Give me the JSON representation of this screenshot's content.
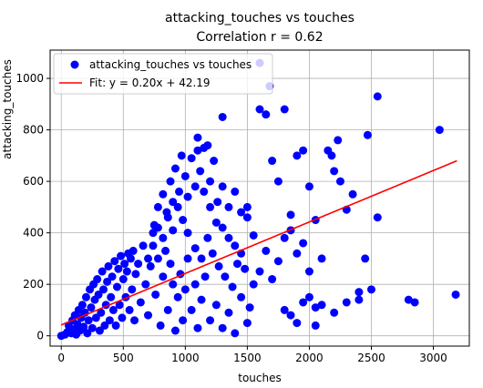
{
  "chart_data": {
    "type": "scatter",
    "title": "attacking_touches vs touches",
    "subtitle": "Correlation r = 0.62",
    "xlabel": "touches",
    "ylabel": "attacking_touches",
    "xlim": [
      -90,
      3290
    ],
    "ylim": [
      -40,
      1110
    ],
    "xticks": [
      0,
      500,
      1000,
      1500,
      2000,
      2500,
      3000
    ],
    "yticks": [
      0,
      200,
      400,
      600,
      800,
      1000
    ],
    "grid": true,
    "legend": "top-left",
    "series": [
      {
        "name": "attacking_touches vs touches",
        "color": "#0000ff",
        "points": [
          [
            0,
            0
          ],
          [
            30,
            5
          ],
          [
            50,
            15
          ],
          [
            60,
            40
          ],
          [
            80,
            10
          ],
          [
            90,
            60
          ],
          [
            100,
            25
          ],
          [
            110,
            80
          ],
          [
            120,
            5
          ],
          [
            130,
            45
          ],
          [
            140,
            100
          ],
          [
            150,
            20
          ],
          [
            160,
            70
          ],
          [
            170,
            120
          ],
          [
            180,
            35
          ],
          [
            190,
            90
          ],
          [
            200,
            150
          ],
          [
            210,
            10
          ],
          [
            220,
            60
          ],
          [
            230,
            180
          ],
          [
            240,
            110
          ],
          [
            250,
            30
          ],
          [
            260,
            200
          ],
          [
            270,
            140
          ],
          [
            280,
            70
          ],
          [
            290,
            220
          ],
          [
            300,
            160
          ],
          [
            310,
            20
          ],
          [
            320,
            90
          ],
          [
            330,
            250
          ],
          [
            340,
            180
          ],
          [
            350,
            40
          ],
          [
            360,
            120
          ],
          [
            370,
            210
          ],
          [
            380,
            270
          ],
          [
            390,
            60
          ],
          [
            400,
            150
          ],
          [
            410,
            230
          ],
          [
            420,
            100
          ],
          [
            430,
            290
          ],
          [
            440,
            40
          ],
          [
            450,
            190
          ],
          [
            460,
            260
          ],
          [
            470,
            120
          ],
          [
            480,
            310
          ],
          [
            490,
            70
          ],
          [
            500,
            220
          ],
          [
            510,
            280
          ],
          [
            520,
            150
          ],
          [
            530,
            250
          ],
          [
            540,
            320
          ],
          [
            550,
            100
          ],
          [
            560,
            300
          ],
          [
            570,
            180
          ],
          [
            580,
            330
          ],
          [
            590,
            60
          ],
          [
            600,
            240
          ],
          [
            620,
            280
          ],
          [
            640,
            130
          ],
          [
            660,
            350
          ],
          [
            680,
            200
          ],
          [
            700,
            80
          ],
          [
            720,
            270
          ],
          [
            740,
            400
          ],
          [
            760,
            160
          ],
          [
            780,
            300
          ],
          [
            800,
            40
          ],
          [
            820,
            230
          ],
          [
            840,
            330
          ],
          [
            860,
            100
          ],
          [
            880,
            280
          ],
          [
            900,
            200
          ],
          [
            920,
            20
          ],
          [
            940,
            150
          ],
          [
            960,
            240
          ],
          [
            980,
            60
          ],
          [
            1000,
            180
          ],
          [
            1020,
            300
          ],
          [
            1050,
            100
          ],
          [
            1080,
            200
          ],
          [
            1100,
            30
          ],
          [
            1130,
            140
          ],
          [
            1160,
            230
          ],
          [
            1200,
            60
          ],
          [
            1250,
            120
          ],
          [
            1300,
            30
          ],
          [
            1350,
            90
          ],
          [
            1400,
            10
          ],
          [
            1450,
            150
          ],
          [
            1500,
            50
          ],
          [
            750,
            430
          ],
          [
            780,
            500
          ],
          [
            820,
            550
          ],
          [
            850,
            480
          ],
          [
            880,
            600
          ],
          [
            900,
            520
          ],
          [
            920,
            650
          ],
          [
            950,
            560
          ],
          [
            970,
            700
          ],
          [
            1000,
            620
          ],
          [
            1020,
            540
          ],
          [
            1050,
            690
          ],
          [
            1080,
            580
          ],
          [
            1100,
            720
          ],
          [
            1120,
            640
          ],
          [
            1150,
            560
          ],
          [
            1180,
            740
          ],
          [
            1200,
            600
          ],
          [
            1230,
            680
          ],
          [
            1260,
            520
          ],
          [
            1300,
            580
          ],
          [
            1350,
            500
          ],
          [
            1400,
            560
          ],
          [
            1450,
            480
          ],
          [
            1500,
            500
          ],
          [
            1100,
            770
          ],
          [
            1150,
            730
          ],
          [
            1300,
            850
          ],
          [
            1200,
            500
          ],
          [
            1250,
            440
          ],
          [
            1300,
            420
          ],
          [
            1350,
            380
          ],
          [
            1400,
            350
          ],
          [
            1450,
            320
          ],
          [
            1500,
            460
          ],
          [
            1550,
            390
          ],
          [
            1600,
            880
          ],
          [
            1650,
            860
          ],
          [
            1680,
            970
          ],
          [
            1700,
            680
          ],
          [
            1600,
            1060
          ],
          [
            1750,
            600
          ],
          [
            1800,
            880
          ],
          [
            1850,
            470
          ],
          [
            1900,
            700
          ],
          [
            1950,
            720
          ],
          [
            2000,
            580
          ],
          [
            2050,
            450
          ],
          [
            2100,
            300
          ],
          [
            2150,
            720
          ],
          [
            2180,
            700
          ],
          [
            2200,
            640
          ],
          [
            2230,
            760
          ],
          [
            2250,
            600
          ],
          [
            2300,
            490
          ],
          [
            2350,
            550
          ],
          [
            2400,
            140
          ],
          [
            2450,
            300
          ],
          [
            2470,
            780
          ],
          [
            2500,
            180
          ],
          [
            2550,
            460
          ],
          [
            2550,
            930
          ],
          [
            2800,
            140
          ],
          [
            2850,
            130
          ],
          [
            3050,
            800
          ],
          [
            3180,
            160
          ],
          [
            1800,
            100
          ],
          [
            1850,
            80
          ],
          [
            1900,
            50
          ],
          [
            1950,
            130
          ],
          [
            2000,
            150
          ],
          [
            2050,
            40
          ],
          [
            2100,
            120
          ],
          [
            2200,
            90
          ],
          [
            2300,
            130
          ],
          [
            2400,
            170
          ],
          [
            1600,
            250
          ],
          [
            1650,
            330
          ],
          [
            1700,
            220
          ],
          [
            1750,
            290
          ],
          [
            1800,
            380
          ],
          [
            1850,
            410
          ],
          [
            1900,
            320
          ],
          [
            1950,
            360
          ],
          [
            2000,
            250
          ],
          [
            2050,
            110
          ],
          [
            1550,
            200
          ],
          [
            1520,
            110
          ],
          [
            1480,
            260
          ],
          [
            1420,
            280
          ],
          [
            1380,
            190
          ],
          [
            1320,
            230
          ],
          [
            1270,
            270
          ],
          [
            1220,
            320
          ],
          [
            1180,
            380
          ],
          [
            1130,
            300
          ],
          [
            1080,
            340
          ],
          [
            1020,
            400
          ],
          [
            980,
            450
          ],
          [
            940,
            500
          ],
          [
            900,
            410
          ],
          [
            860,
            460
          ],
          [
            820,
            380
          ],
          [
            780,
            420
          ],
          [
            740,
            350
          ],
          [
            700,
            300
          ]
        ]
      }
    ],
    "fit": {
      "name": "Fit: y = 0.20x + 42.19",
      "color": "#ff0000",
      "slope": 0.2,
      "intercept": 42.19,
      "x_range": [
        0,
        3190
      ]
    }
  }
}
